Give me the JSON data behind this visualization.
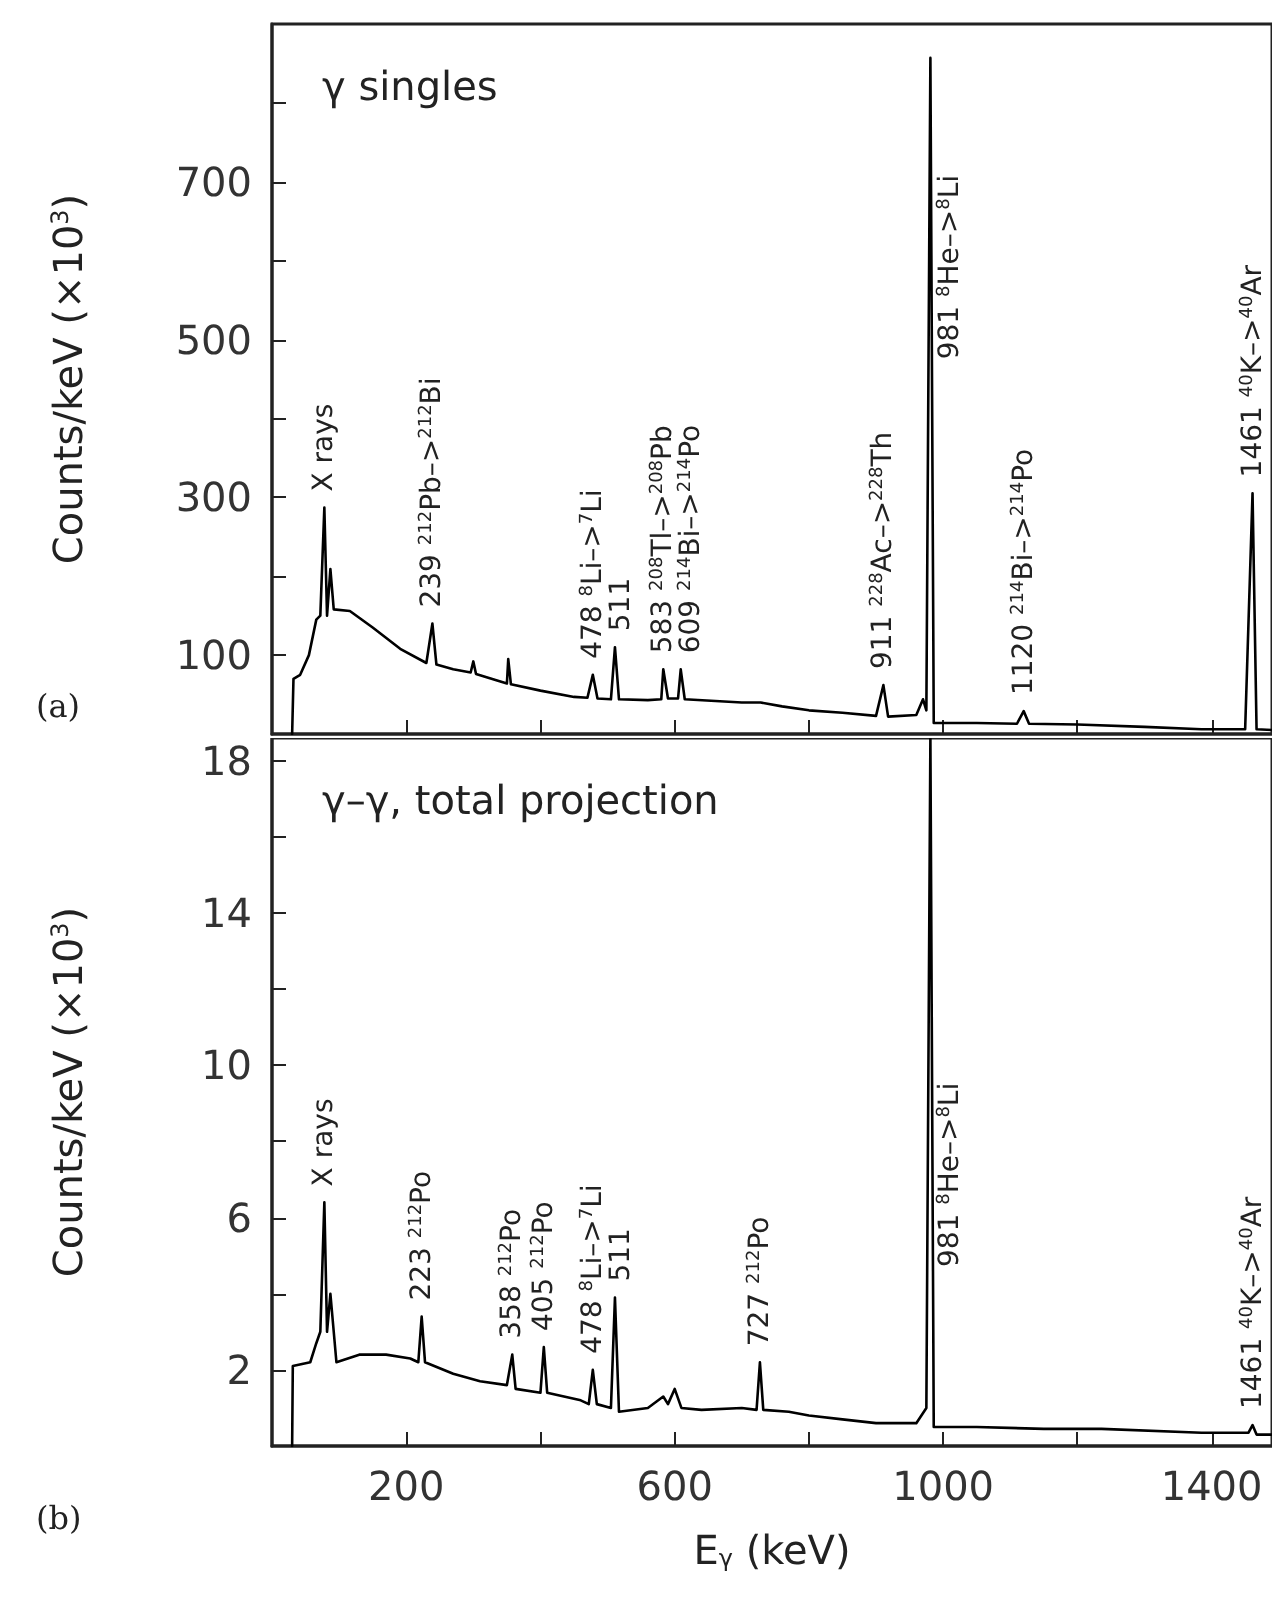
{
  "chart_data": [
    {
      "type": "line",
      "title": "γ singles",
      "ylabel": "Counts/keV (×10$^{3}$)",
      "color": "#000000",
      "marker": "none",
      "line_style": "solid",
      "grid": false,
      "tick_labels": "y",
      "x": [
        30,
        32,
        42,
        55,
        66,
        72,
        78,
        82,
        87,
        92,
        116,
        150,
        191,
        230,
        239,
        245,
        270,
        296,
        300,
        304,
        350,
        352,
        356,
        400,
        450,
        470,
        478,
        485,
        505,
        511,
        517,
        560,
        580,
        583,
        590,
        605,
        609,
        615,
        700,
        728,
        760,
        800,
        850,
        900,
        911,
        918,
        960,
        970,
        975,
        981,
        986,
        1050,
        1110,
        1120,
        1128,
        1200,
        1300,
        1385,
        1450,
        1461,
        1467,
        1490
      ],
      "values": [
        0,
        70,
        75,
        100,
        145,
        150,
        287,
        150,
        209,
        158,
        156,
        135,
        108,
        90,
        140,
        88,
        82,
        78,
        92,
        76,
        64,
        95,
        63,
        55,
        47,
        46,
        75,
        45,
        44,
        110,
        44,
        43,
        44,
        82,
        45,
        45,
        82,
        44,
        40,
        40,
        35,
        30,
        27,
        23,
        62,
        22,
        24,
        44,
        30,
        857,
        14,
        14,
        13,
        29,
        13,
        12,
        9,
        6,
        6,
        305,
        6,
        5
      ],
      "xlim": [
        0,
        1490
      ],
      "xticks": [
        200,
        {
          "value": 400,
          "label": null
        },
        600,
        {
          "value": 800,
          "label": null
        },
        1000,
        {
          "value": 1200,
          "label": null
        },
        1400
      ],
      "ylim": [
        0,
        900
      ],
      "yticks": [
        100,
        {
          "value": 200,
          "label": null
        },
        300,
        {
          "value": 400,
          "label": null
        },
        500,
        {
          "value": 600,
          "label": null
        },
        700,
        {
          "value": 800,
          "label": null
        }
      ],
      "annotations": [
        {
          "text": "X rays",
          "x": 78,
          "y": 287
        },
        {
          "text": "239 $^{212}$Pb–>$^{212}$Bi",
          "x": 239,
          "y": 140
        },
        {
          "text": "478 $^{8}$Li–>$^{7}$Li",
          "x": 478,
          "y": 75
        },
        {
          "text": "511",
          "x": 511,
          "y": 110
        },
        {
          "text": "583 $^{208}$Tl–>$^{208}$Pb",
          "x": 583,
          "y": 82
        },
        {
          "text": "609 $^{214}$Bi–>$^{214}$Po",
          "x": 609,
          "y": 82
        },
        {
          "text": "911 $^{228}$Ac–>$^{228}$Th",
          "x": 911,
          "y": 62
        },
        {
          "text": "981 $^{8}$He–>$^{8}$Li",
          "x": 981,
          "y": 475
        },
        {
          "text": "1120 $^{214}$Bi–>$^{214}$Po",
          "x": 1120,
          "y": 29
        },
        {
          "text": "1461 $^{40}$K–>$^{40}$Ar",
          "x": 1461,
          "y": 305
        },
        "(a)"
      ]
    },
    {
      "type": "line",
      "title": "γ–γ, total projection",
      "xlabel": "E$_{γ}$ (keV)",
      "ylabel": "Counts/keV (×10$^{3}$)",
      "color": "#000000",
      "marker": "none",
      "line_style": "solid",
      "grid": false,
      "x": [
        30,
        31,
        57,
        66,
        72,
        78,
        82,
        87,
        96,
        130,
        170,
        206,
        218,
        223,
        228,
        270,
        310,
        350,
        358,
        363,
        400,
        405,
        410,
        460,
        472,
        478,
        484,
        505,
        511,
        517,
        560,
        583,
        590,
        600,
        610,
        640,
        700,
        722,
        727,
        732,
        770,
        800,
        850,
        900,
        960,
        975,
        981,
        986,
        1050,
        1150,
        1236,
        1385,
        1455,
        1461,
        1467,
        1490
      ],
      "values": [
        0,
        2.1,
        2.2,
        2.7,
        3.0,
        6.4,
        3.0,
        4.0,
        2.2,
        2.4,
        2.4,
        2.3,
        2.2,
        3.4,
        2.2,
        1.9,
        1.7,
        1.6,
        2.4,
        1.5,
        1.4,
        2.6,
        1.4,
        1.2,
        1.1,
        2.0,
        1.1,
        1.0,
        3.9,
        0.9,
        1.0,
        1.3,
        1.1,
        1.5,
        1.0,
        0.95,
        1.0,
        0.95,
        2.2,
        0.95,
        0.9,
        0.8,
        0.7,
        0.6,
        0.6,
        1.0,
        18.6,
        0.5,
        0.5,
        0.45,
        0.45,
        0.35,
        0.35,
        0.55,
        0.3,
        0.3
      ],
      "xlim": [
        0,
        1490
      ],
      "xticks": [
        200,
        {
          "value": 400,
          "label": null
        },
        600,
        {
          "value": 800,
          "label": null
        },
        1000,
        {
          "value": 1200,
          "label": null
        },
        1400
      ],
      "ylim": [
        0,
        18.6
      ],
      "yticks": [
        2,
        {
          "value": 4,
          "label": null
        },
        6,
        {
          "value": 8,
          "label": null
        },
        10,
        {
          "value": 12,
          "label": null
        },
        14,
        {
          "value": 16,
          "label": null
        },
        18
      ],
      "annotations": [
        {
          "text": "X rays",
          "x": 78,
          "y": 6.4
        },
        {
          "text": "223 $^{212}$Po",
          "x": 223,
          "y": 3.4
        },
        {
          "text": "358 $^{212}$Po",
          "x": 358,
          "y": 2.4
        },
        {
          "text": "405 $^{212}$Po",
          "x": 405,
          "y": 2.6
        },
        {
          "text": "478 $^{8}$Li–>$^{7}$Li",
          "x": 478,
          "y": 2.0
        },
        {
          "text": "511",
          "x": 511,
          "y": 3.9
        },
        {
          "text": "727 $^{212}$Po",
          "x": 727,
          "y": 2.2
        },
        {
          "text": "981 $^{8}$He–>$^{8}$Li",
          "x": 981,
          "y": 4.7
        },
        {
          "text": "1461 $^{40}$K–>$^{40}$Ar",
          "x": 1461,
          "y": 0.55
        },
        "(b)"
      ]
    }
  ]
}
